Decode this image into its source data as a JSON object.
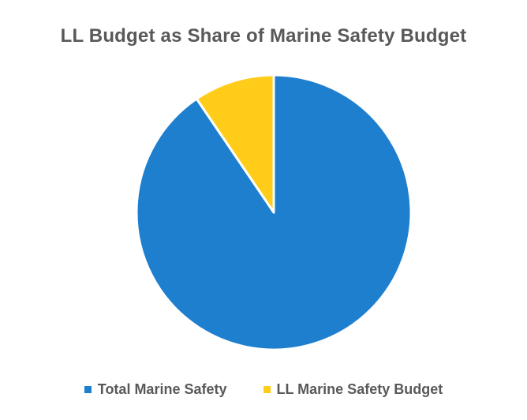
{
  "chart_data": {
    "type": "pie",
    "title": "LL Budget as Share of Marine Safety Budget",
    "categories": [
      "Total Marine Safety",
      "LL Marine Safety Budget"
    ],
    "values": [
      90.5,
      9.5
    ],
    "colors": [
      "#1f7fcf",
      "#ffcc1a"
    ],
    "legend_position": "bottom",
    "start_angle": "12 o'clock",
    "direction": "clockwise"
  }
}
